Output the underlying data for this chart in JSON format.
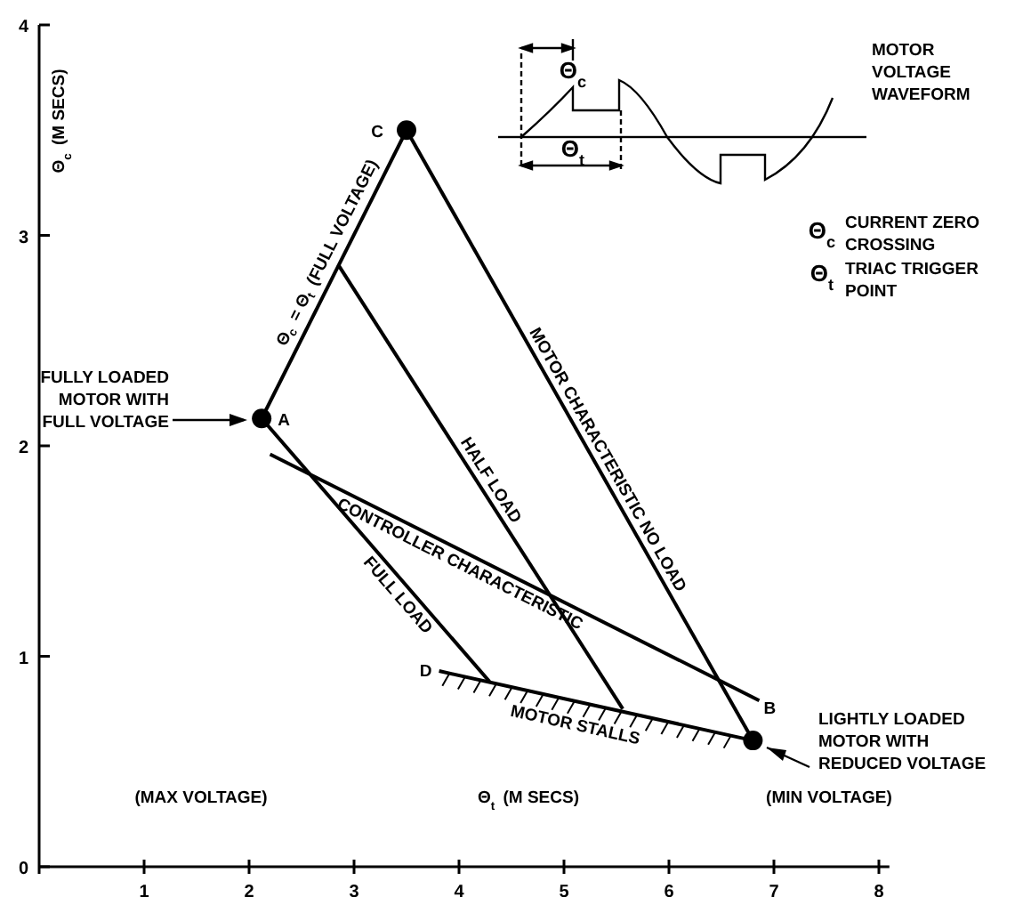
{
  "chart_data": {
    "type": "line",
    "xlabel": "Θ$_{t}$ (M SECS)",
    "ylabel": "Θ$_{c}$ (M SECS)",
    "xlim": [
      0,
      8.1
    ],
    "ylim": [
      0,
      4
    ],
    "xticks": [
      1,
      2,
      3,
      4,
      5,
      6,
      7,
      8
    ],
    "yticks": [
      0,
      1,
      2,
      3,
      4
    ],
    "grid": false,
    "line_style": "solid",
    "series": [
      {
        "name": "Θ$_{c}$ = Θ$_{t}$ (FULL VOLTAGE)",
        "color": "#000000",
        "x": [
          2.12,
          3.5
        ],
        "values": [
          2.13,
          3.5
        ]
      },
      {
        "name": "MOTOR CHARACTERISTIC NO LOAD",
        "color": "#000000",
        "x": [
          3.5,
          6.8
        ],
        "values": [
          3.5,
          0.6
        ]
      },
      {
        "name": "HALF LOAD",
        "color": "#000000",
        "x": [
          2.85,
          5.56
        ],
        "values": [
          2.86,
          0.75
        ]
      },
      {
        "name": "FULL LOAD",
        "color": "#000000",
        "x": [
          2.12,
          4.29
        ],
        "values": [
          2.13,
          0.88
        ]
      },
      {
        "name": "CONTROLLER CHARACTERISTIC",
        "color": "#000000",
        "x": [
          2.2,
          6.86
        ],
        "values": [
          1.96,
          0.79
        ]
      },
      {
        "name": "MOTOR STALLS",
        "color": "#000000",
        "x": [
          3.81,
          6.8
        ],
        "values": [
          0.93,
          0.6
        ]
      },
      {
        "type": "scatter",
        "marker": "circle",
        "color": "#000000",
        "x": [
          2.12,
          3.5,
          6.8
        ],
        "values": [
          2.13,
          3.5,
          0.6
        ]
      }
    ],
    "annotations": [
      "(MAX VOLTAGE)",
      "(MIN VOLTAGE)",
      "FULLY LOADED MOTOR WITH FULL VOLTAGE",
      "LIGHTLY LOADED MOTOR WITH REDUCED VOLTAGE",
      {
        "text": "A",
        "x": 2.12,
        "y": 2.13
      },
      {
        "text": "B",
        "x": 6.8,
        "y": 0.6
      },
      {
        "text": "C",
        "x": 3.5,
        "y": 3.5
      },
      {
        "text": "D",
        "x": 3.81,
        "y": 0.93
      },
      "MOTOR VOLTAGE WAVEFORM",
      "Θ$_{c}$",
      "Θ$_{t}$",
      "Θ$_{c}$",
      "CURRENT ZERO CROSSING",
      "Θ$_{t}$",
      "TRIAC TRIGGER POINT"
    ]
  }
}
